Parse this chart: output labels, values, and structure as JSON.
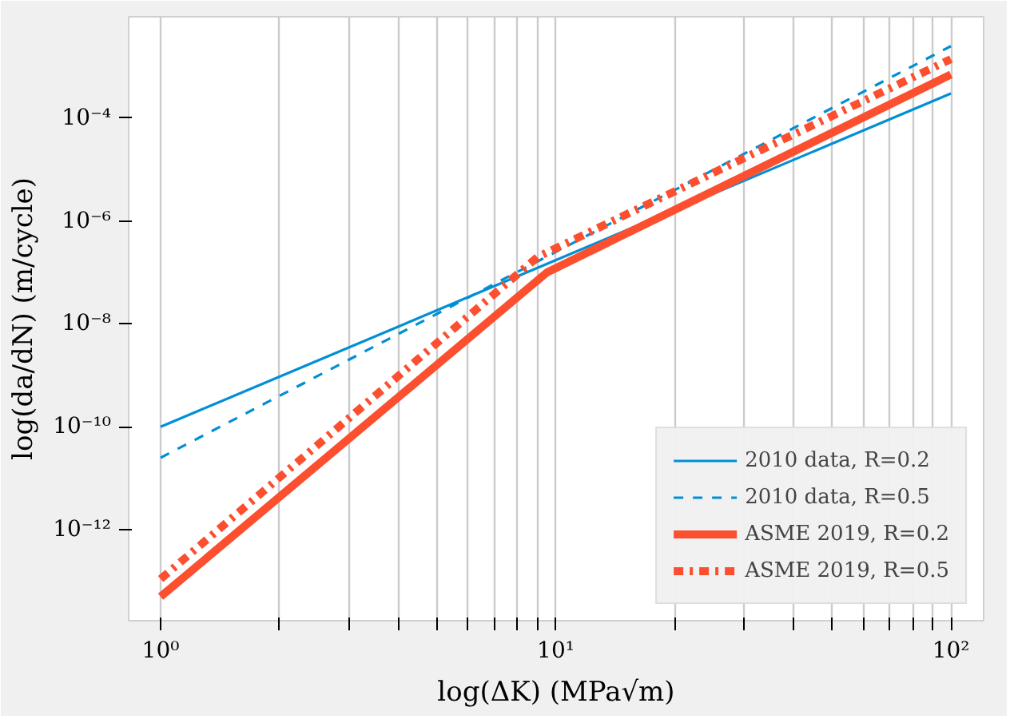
{
  "chart_data": {
    "type": "line",
    "xlabel": "log(ΔK) (MPa√m)",
    "ylabel": "log(da/dN) (m/cycle)",
    "log": "xy",
    "grid": "x",
    "legend": "bottom right",
    "xlim": [
      0.83,
      121
    ],
    "ylim": [
      1.7e-14,
      0.0093
    ],
    "xticks": [
      {
        "value": 1,
        "label": "10⁰"
      },
      {
        "value": 2,
        "label": null
      },
      {
        "value": 3,
        "label": null
      },
      {
        "value": 4,
        "label": null
      },
      {
        "value": 5,
        "label": null
      },
      {
        "value": 6,
        "label": null
      },
      {
        "value": 7,
        "label": null
      },
      {
        "value": 8,
        "label": null
      },
      {
        "value": 9,
        "label": null
      },
      {
        "value": 10,
        "label": "10¹"
      },
      {
        "value": 20,
        "label": null
      },
      {
        "value": 30,
        "label": null
      },
      {
        "value": 40,
        "label": null
      },
      {
        "value": 50,
        "label": null
      },
      {
        "value": 60,
        "label": null
      },
      {
        "value": 70,
        "label": null
      },
      {
        "value": 80,
        "label": null
      },
      {
        "value": 90,
        "label": null
      },
      {
        "value": 100,
        "label": "10²"
      }
    ],
    "yticks": [
      {
        "value": 1e-12,
        "label": "10⁻¹²"
      },
      {
        "value": 1e-10,
        "label": "10⁻¹⁰"
      },
      {
        "value": 1e-08,
        "label": "10⁻⁸"
      },
      {
        "value": 1e-06,
        "label": "10⁻⁶"
      },
      {
        "value": 0.0001,
        "label": "10⁻⁴"
      }
    ],
    "series": [
      {
        "name": "2010 data, R=0.2",
        "color": "#008fd5",
        "line_style": "solid",
        "x": [
          1,
          100
        ],
        "values": [
          1e-10,
          0.0003
        ]
      },
      {
        "name": "2010 data, R=0.5",
        "color": "#008fd5",
        "line_style": "dashed",
        "x": [
          1,
          100
        ],
        "values": [
          2.5e-11,
          0.0025
        ]
      },
      {
        "name": "ASME 2019, R=0.2",
        "color": "#fc4f30",
        "line_style": "solid",
        "x": [
          1,
          9.5,
          100
        ],
        "values": [
          5e-14,
          1e-07,
          0.0007
        ]
      },
      {
        "name": "ASME 2019, R=0.5",
        "color": "#fc4f30",
        "line_style": "dashdot",
        "x": [
          1,
          9,
          100
        ],
        "values": [
          1.1e-13,
          2e-07,
          0.0014
        ]
      }
    ]
  }
}
